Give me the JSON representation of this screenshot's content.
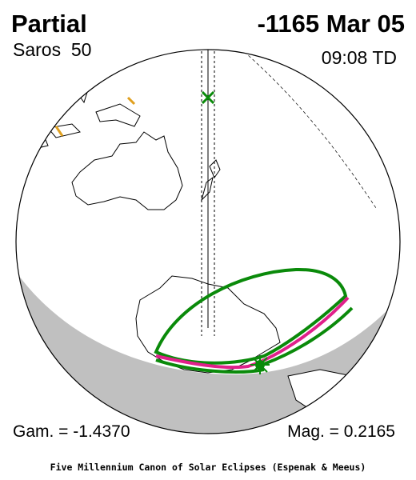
{
  "header": {
    "type": "Partial",
    "date": "-1165 Mar 05",
    "saros": "Saros  50",
    "time": "09:08 TD"
  },
  "footer": {
    "gamma": "Gam. = -1.4370",
    "magnitude": "Mag. = 0.2165",
    "credit": "Five Millennium Canon of Solar Eclipses (Espenak & Meeus)"
  }
}
